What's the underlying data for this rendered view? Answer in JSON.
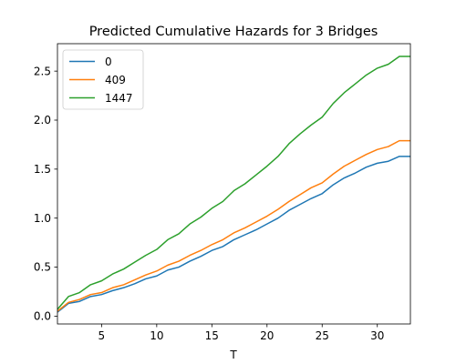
{
  "chart_data": {
    "type": "line",
    "title": "Predicted Cumulative Hazards for 3 Bridges",
    "xlabel": "T",
    "ylabel": "",
    "xlim": [
      1,
      33
    ],
    "ylim": [
      -0.08,
      2.78
    ],
    "xticks": [
      5,
      10,
      15,
      20,
      25,
      30
    ],
    "yticks": [
      0.0,
      0.5,
      1.0,
      1.5,
      2.0,
      2.5
    ],
    "xtick_labels": [
      "5",
      "10",
      "15",
      "20",
      "25",
      "30"
    ],
    "ytick_labels": [
      "0.0",
      "0.5",
      "1.0",
      "1.5",
      "2.0",
      "2.5"
    ],
    "grid": false,
    "legend_position": "top-left",
    "x": [
      1,
      2,
      3,
      4,
      5,
      6,
      7,
      8,
      9,
      10,
      11,
      12,
      13,
      14,
      15,
      16,
      17,
      18,
      19,
      20,
      21,
      22,
      23,
      24,
      25,
      26,
      27,
      28,
      29,
      30,
      31,
      32,
      33
    ],
    "series": [
      {
        "name": "0",
        "color": "#1f77b4",
        "values": [
          0.04,
          0.13,
          0.15,
          0.2,
          0.22,
          0.26,
          0.29,
          0.33,
          0.38,
          0.41,
          0.47,
          0.5,
          0.56,
          0.61,
          0.67,
          0.71,
          0.78,
          0.83,
          0.88,
          0.94,
          1.0,
          1.08,
          1.14,
          1.2,
          1.25,
          1.34,
          1.41,
          1.46,
          1.52,
          1.56,
          1.58,
          1.63,
          1.63
        ]
      },
      {
        "name": "409",
        "color": "#ff7f0e",
        "values": [
          0.05,
          0.14,
          0.17,
          0.22,
          0.24,
          0.29,
          0.32,
          0.37,
          0.42,
          0.46,
          0.52,
          0.56,
          0.62,
          0.67,
          0.73,
          0.78,
          0.85,
          0.9,
          0.96,
          1.02,
          1.09,
          1.17,
          1.24,
          1.31,
          1.36,
          1.45,
          1.53,
          1.59,
          1.65,
          1.7,
          1.73,
          1.79,
          1.79
        ]
      },
      {
        "name": "1447",
        "color": "#2ca02c",
        "values": [
          0.07,
          0.2,
          0.24,
          0.32,
          0.36,
          0.43,
          0.48,
          0.55,
          0.62,
          0.68,
          0.78,
          0.84,
          0.94,
          1.01,
          1.1,
          1.17,
          1.28,
          1.35,
          1.44,
          1.53,
          1.63,
          1.76,
          1.86,
          1.95,
          2.03,
          2.17,
          2.28,
          2.37,
          2.46,
          2.53,
          2.57,
          2.65,
          2.65
        ]
      }
    ]
  }
}
